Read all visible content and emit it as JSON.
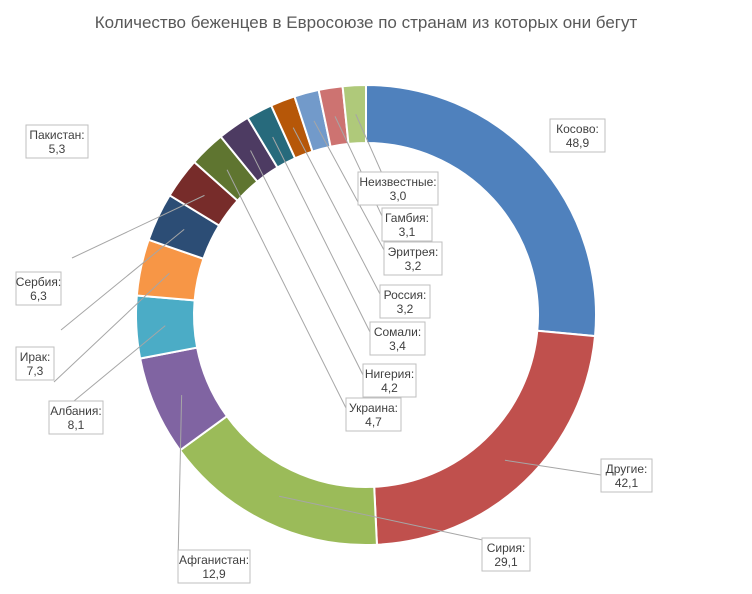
{
  "chart_data": {
    "type": "doughnut",
    "title": "Количество беженцев в Евросоюзе по странам из которых они бегут",
    "series": [
      {
        "name": "Беженцы",
        "slices": [
          {
            "label": "Косово:",
            "value": 48.9,
            "display": "48,9",
            "color": "#4F81BD"
          },
          {
            "label": "Другие:",
            "value": 42.1,
            "display": "42,1",
            "color": "#C0504D"
          },
          {
            "label": "Сирия:",
            "value": 29.1,
            "display": "29,1",
            "color": "#9BBB59"
          },
          {
            "label": "Афганистан:",
            "value": 12.9,
            "display": "12,9",
            "color": "#8064A2"
          },
          {
            "label": "Албания:",
            "value": 8.1,
            "display": "8,1",
            "color": "#4BACC6"
          },
          {
            "label": "Ирак:",
            "value": 7.3,
            "display": "7,3",
            "color": "#F79646"
          },
          {
            "label": "Сербия:",
            "value": 6.3,
            "display": "6,3",
            "color": "#2C4D75"
          },
          {
            "label": "Пакистан:",
            "value": 5.3,
            "display": "5,3",
            "color": "#772C2A"
          },
          {
            "label": "Украина:",
            "value": 4.7,
            "display": "4,7",
            "color": "#5F7530"
          },
          {
            "label": "Нигерия:",
            "value": 4.2,
            "display": "4,2",
            "color": "#4D3B62"
          },
          {
            "label": "Сомали:",
            "value": 3.4,
            "display": "3,4",
            "color": "#276A7C"
          },
          {
            "label": "Россия:",
            "value": 3.2,
            "display": "3,2",
            "color": "#B65708"
          },
          {
            "label": "Эритрея:",
            "value": 3.2,
            "display": "3,2",
            "color": "#729ACA"
          },
          {
            "label": "Гамбия:",
            "value": 3.1,
            "display": "3,1",
            "color": "#CD7371"
          },
          {
            "label": "Неизвестные:",
            "value": 3.0,
            "display": "3,0",
            "color": "#AFC97A"
          }
        ]
      }
    ],
    "legend": "none",
    "start_angle": "top",
    "direction": "clockwise"
  }
}
